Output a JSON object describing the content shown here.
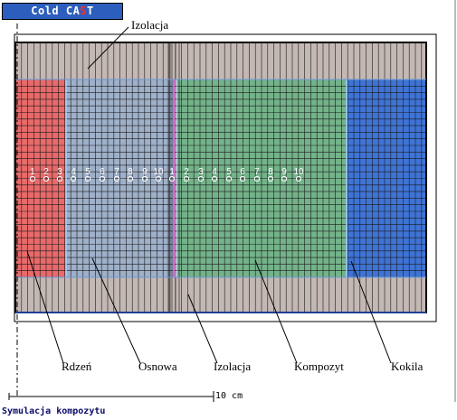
{
  "app": {
    "title_main": "Cold CA",
    "title_accent": "S",
    "title_tail": "T"
  },
  "labels": {
    "insulation_top": "Izolacja",
    "core": "Rdzeń",
    "matrix": "Osnowa",
    "insulation_bottom": "Izolacja",
    "composite": "Kompozyt",
    "mold": "Kokila"
  },
  "scale": {
    "text": "10 cm"
  },
  "status": {
    "text": "Symulacja kompozytu"
  },
  "probes": {
    "group_a": [
      "1",
      "2",
      "3",
      "4",
      "5",
      "6",
      "7",
      "8",
      "9",
      "10"
    ],
    "group_b": [
      "1",
      "2",
      "3",
      "4",
      "5",
      "6",
      "7",
      "8",
      "9",
      "10"
    ]
  },
  "colors": {
    "insulation": "#c4b8b4",
    "core": "#e86a6a",
    "matrix": "#9fb0c9",
    "composite": "#74b38a",
    "mold": "#3f74d6",
    "title_bg": "#2c5fbd",
    "accent": "#ff2b2b",
    "divider": "#e060e0"
  }
}
